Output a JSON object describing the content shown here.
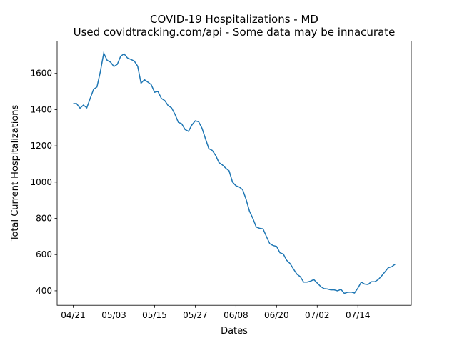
{
  "chart_data": {
    "type": "line",
    "title": "COVID-19 Hospitalizations - MD",
    "subtitle": "Used covidtracking.com/api - Some data may be innacurate",
    "xlabel": "Dates",
    "ylabel": "Total Current Hospitalizations",
    "x": [
      "04/21",
      "04/22",
      "04/23",
      "04/24",
      "04/25",
      "04/26",
      "04/27",
      "04/28",
      "04/29",
      "04/30",
      "05/01",
      "05/02",
      "05/03",
      "05/04",
      "05/05",
      "05/06",
      "05/07",
      "05/08",
      "05/09",
      "05/10",
      "05/11",
      "05/12",
      "05/13",
      "05/14",
      "05/15",
      "05/16",
      "05/17",
      "05/18",
      "05/19",
      "05/20",
      "05/21",
      "05/22",
      "05/23",
      "05/24",
      "05/25",
      "05/26",
      "05/27",
      "05/28",
      "05/29",
      "05/30",
      "05/31",
      "06/01",
      "06/02",
      "06/03",
      "06/04",
      "06/05",
      "06/06",
      "06/07",
      "06/08",
      "06/09",
      "06/10",
      "06/11",
      "06/12",
      "06/13",
      "06/14",
      "06/15",
      "06/16",
      "06/17",
      "06/18",
      "06/19",
      "06/20",
      "06/21",
      "06/22",
      "06/23",
      "06/24",
      "06/25",
      "06/26",
      "06/27",
      "06/28",
      "06/29",
      "06/30",
      "07/01",
      "07/02",
      "07/03",
      "07/04",
      "07/05",
      "07/06",
      "07/07",
      "07/08",
      "07/09",
      "07/10",
      "07/11",
      "07/12",
      "07/13",
      "07/14",
      "07/15",
      "07/16",
      "07/17",
      "07/18",
      "07/19",
      "07/20",
      "07/21",
      "07/22",
      "07/23",
      "07/24",
      "07/25"
    ],
    "series": [
      {
        "color": "#1f77b4",
        "values": [
          1433,
          1433,
          1408,
          1425,
          1410,
          1462,
          1512,
          1525,
          1610,
          1712,
          1672,
          1662,
          1638,
          1650,
          1695,
          1708,
          1685,
          1677,
          1668,
          1640,
          1546,
          1565,
          1552,
          1538,
          1496,
          1500,
          1462,
          1450,
          1422,
          1410,
          1375,
          1330,
          1322,
          1290,
          1280,
          1315,
          1338,
          1333,
          1297,
          1240,
          1185,
          1175,
          1148,
          1108,
          1095,
          1077,
          1062,
          1000,
          980,
          973,
          958,
          905,
          840,
          800,
          752,
          745,
          742,
          700,
          660,
          650,
          645,
          610,
          603,
          568,
          550,
          520,
          492,
          478,
          448,
          448,
          453,
          462,
          443,
          424,
          412,
          410,
          405,
          405,
          400,
          408,
          386,
          392,
          393,
          388,
          415,
          448,
          437,
          435,
          450,
          450,
          462,
          482,
          505,
          528,
          533,
          547
        ]
      }
    ],
    "xticks": [
      "04/21",
      "05/03",
      "05/15",
      "05/27",
      "06/08",
      "06/20",
      "07/02",
      "07/14"
    ],
    "ylim": [
      320,
      1778
    ],
    "yticks": [
      400,
      600,
      800,
      1000,
      1200,
      1400,
      1600
    ]
  }
}
